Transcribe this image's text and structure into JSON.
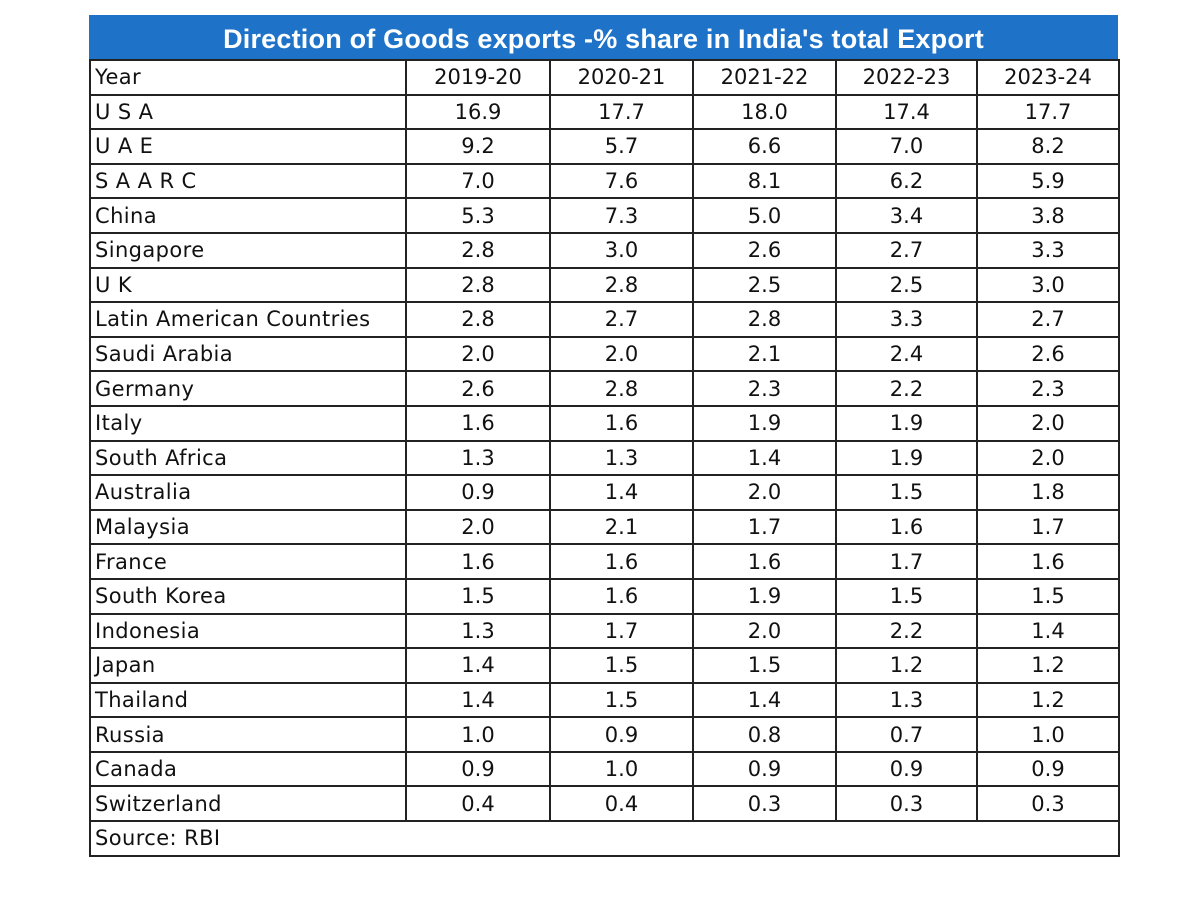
{
  "title": "Direction of Goods exports  -% share in India's total Export",
  "chart_data": {
    "type": "table",
    "title": "Direction of Goods exports  -% share in India's total Export",
    "header_label": "Year",
    "columns": [
      "2019-20",
      "2020-21",
      "2021-22",
      "2022-23",
      "2023-24"
    ],
    "rows": [
      {
        "label": "U S A",
        "values": [
          "16.9",
          "17.7",
          "18.0",
          "17.4",
          "17.7"
        ]
      },
      {
        "label": "U A E",
        "values": [
          "9.2",
          "5.7",
          "6.6",
          "7.0",
          "8.2"
        ]
      },
      {
        "label": "S A A R C",
        "values": [
          "7.0",
          "7.6",
          "8.1",
          "6.2",
          "5.9"
        ]
      },
      {
        "label": "China",
        "values": [
          "5.3",
          "7.3",
          "5.0",
          "3.4",
          "3.8"
        ]
      },
      {
        "label": "Singapore",
        "values": [
          "2.8",
          "3.0",
          "2.6",
          "2.7",
          "3.3"
        ]
      },
      {
        "label": "U K",
        "values": [
          "2.8",
          "2.8",
          "2.5",
          "2.5",
          "3.0"
        ]
      },
      {
        "label": "Latin American Countries",
        "values": [
          "2.8",
          "2.7",
          "2.8",
          "3.3",
          "2.7"
        ]
      },
      {
        "label": "Saudi Arabia",
        "values": [
          "2.0",
          "2.0",
          "2.1",
          "2.4",
          "2.6"
        ]
      },
      {
        "label": "Germany",
        "values": [
          "2.6",
          "2.8",
          "2.3",
          "2.2",
          "2.3"
        ]
      },
      {
        "label": "Italy",
        "values": [
          "1.6",
          "1.6",
          "1.9",
          "1.9",
          "2.0"
        ]
      },
      {
        "label": "South Africa",
        "values": [
          "1.3",
          "1.3",
          "1.4",
          "1.9",
          "2.0"
        ]
      },
      {
        "label": "Australia",
        "values": [
          "0.9",
          "1.4",
          "2.0",
          "1.5",
          "1.8"
        ]
      },
      {
        "label": "Malaysia",
        "values": [
          "2.0",
          "2.1",
          "1.7",
          "1.6",
          "1.7"
        ]
      },
      {
        "label": "France",
        "values": [
          "1.6",
          "1.6",
          "1.6",
          "1.7",
          "1.6"
        ]
      },
      {
        "label": "South Korea",
        "values": [
          "1.5",
          "1.6",
          "1.9",
          "1.5",
          "1.5"
        ]
      },
      {
        "label": "Indonesia",
        "values": [
          "1.3",
          "1.7",
          "2.0",
          "2.2",
          "1.4"
        ]
      },
      {
        "label": "Japan",
        "values": [
          "1.4",
          "1.5",
          "1.5",
          "1.2",
          "1.2"
        ]
      },
      {
        "label": "Thailand",
        "values": [
          "1.4",
          "1.5",
          "1.4",
          "1.3",
          "1.2"
        ]
      },
      {
        "label": "Russia",
        "values": [
          "1.0",
          "0.9",
          "0.8",
          "0.7",
          "1.0"
        ]
      },
      {
        "label": "Canada",
        "values": [
          "0.9",
          "1.0",
          "0.9",
          "0.9",
          "0.9"
        ]
      },
      {
        "label": "Switzerland",
        "values": [
          "0.4",
          "0.4",
          "0.3",
          "0.3",
          "0.3"
        ]
      }
    ],
    "source": "Source: RBI"
  }
}
